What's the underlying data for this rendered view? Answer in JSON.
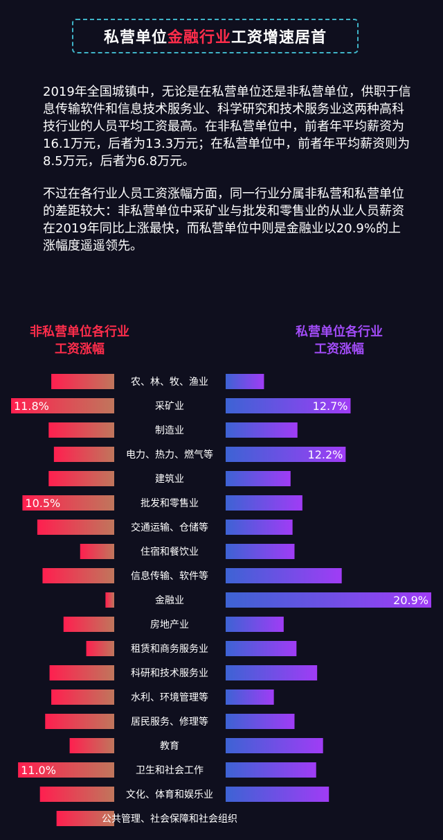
{
  "title": {
    "pre": "私营单位",
    "highlight": "金融行业",
    "post": "工资增速居首"
  },
  "paragraphs": [
    "2019年全国城镇中，无论是在私营单位还是非私营单位，供职于信息传输软件和信息技术服务业、科学研究和技术服务业这两种高科技行业的人员平均工资最高。在非私营单位中，前者年平均薪资为16.1万元，后者为13.3万元；在私营单位中，前者年平均薪资则为8.5万元，后者为6.8万元。",
    "不过在各行业人员工资涨幅方面，同一行业分属非私营和私营单位的差距较大：非私营单位中采矿业与批发和零售业的从业人员薪资在2019年同比上涨最快，而私营单位中则是金融业以20.9%的上涨幅度遥遥领先。"
  ],
  "legend": {
    "left": {
      "line1": "非私营单位各行业",
      "line2": "工资涨幅"
    },
    "right": {
      "line1": "私营单位各行业",
      "line2": "工资涨幅"
    }
  },
  "colors": {
    "left_start": "#ff1f4f",
    "left_end": "#c0765c",
    "right_start": "#3d63d4",
    "right_end": "#a03cf5",
    "title_highlight": "#ff2d4b",
    "border": "#3fb4c8"
  },
  "chart_data": {
    "type": "bar",
    "orientation": "horizontal-butterfly",
    "unit": "%",
    "categories": [
      "农、林、牧、渔业",
      "采矿业",
      "制造业",
      "电力、热力、燃气等",
      "建筑业",
      "批发和零售业",
      "交通运输、仓储等",
      "住宿和餐饮业",
      "信息传输、软件等",
      "金融业",
      "房地产业",
      "租赁和商务服务业",
      "科研和技术服务业",
      "水利、环境管理等",
      "居民服务、修理等",
      "教育",
      "卫生和社会工作",
      "文化、体育和娱乐业",
      "公共管理、社会保障和社会组织"
    ],
    "series": [
      {
        "name": "非私营单位各行业工资涨幅",
        "values": [
          7.2,
          11.8,
          7.5,
          6.9,
          7.5,
          10.5,
          8.8,
          3.9,
          8.2,
          1.0,
          5.8,
          3.2,
          7.4,
          7.2,
          7.9,
          5.1,
          11.0,
          8.5,
          6.6
        ],
        "labeled": [
          false,
          true,
          false,
          false,
          false,
          true,
          false,
          false,
          false,
          false,
          false,
          false,
          false,
          false,
          false,
          false,
          true,
          false,
          false
        ]
      },
      {
        "name": "私营单位各行业工资涨幅",
        "values": [
          3.9,
          12.7,
          7.3,
          12.2,
          6.6,
          7.8,
          6.8,
          7.0,
          11.8,
          20.9,
          5.9,
          7.2,
          9.3,
          4.9,
          7.0,
          9.9,
          9.2,
          10.5,
          null
        ],
        "labeled": [
          false,
          true,
          false,
          true,
          false,
          false,
          false,
          false,
          false,
          true,
          false,
          false,
          false,
          false,
          false,
          false,
          false,
          false,
          false
        ]
      }
    ]
  }
}
